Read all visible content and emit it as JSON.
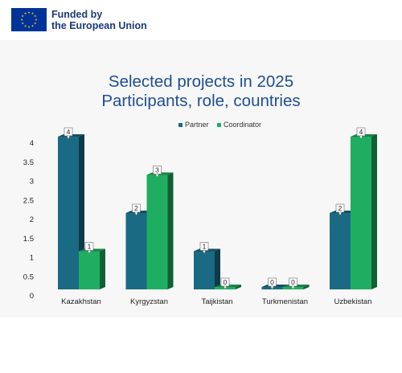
{
  "header": {
    "line1": "Funded by",
    "line2": "the European Union",
    "flag_color": "#003399",
    "star_color": "#ffcc00"
  },
  "chart_data": {
    "type": "bar",
    "title_line1": "Selected projects in 2025",
    "title_line2": "Participants, role, countries",
    "categories": [
      "Kazakhstan",
      "Kyrgyzstan",
      "Taijkistan",
      "Turkmenistan",
      "Uzbekistan"
    ],
    "series": [
      {
        "name": "Partner",
        "values": [
          4,
          2,
          1,
          0,
          2
        ],
        "color": "#1a6a84"
      },
      {
        "name": "Coordinator",
        "values": [
          1,
          3,
          0,
          0,
          4
        ],
        "color": "#1fae61"
      }
    ],
    "yticks": [
      "0",
      "0.5",
      "1",
      "1.5",
      "2",
      "2.5",
      "3",
      "3.5",
      "4"
    ],
    "ylim": [
      0,
      4
    ],
    "legend_position": "top-center",
    "grid": false
  }
}
